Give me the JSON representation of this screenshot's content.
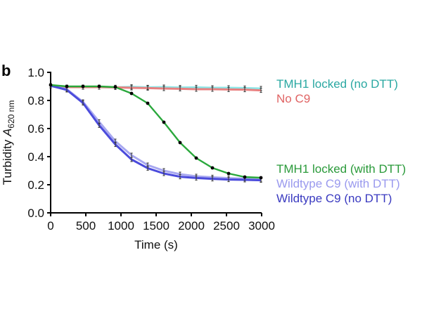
{
  "panel_label": "b",
  "chart_data": {
    "type": "line",
    "title": "",
    "xlabel": "Time (s)",
    "ylabel_main": "Turbidity ",
    "ylabel_symbol": "A",
    "ylabel_subscript": "620 nm",
    "xlim": [
      0,
      3000
    ],
    "ylim": [
      0.0,
      1.0
    ],
    "xticks": [
      0,
      500,
      1000,
      1500,
      2000,
      2500,
      3000
    ],
    "xtick_labels": [
      "0",
      "500",
      "1000",
      "1500",
      "2000",
      "2500",
      "3000"
    ],
    "yticks": [
      0.0,
      0.2,
      0.4,
      0.6,
      0.8,
      1.0
    ],
    "ytick_labels": [
      "0.0",
      "0.2",
      "0.4",
      "0.6",
      "0.8",
      "1.0"
    ],
    "grid": false,
    "legend_placement": "right",
    "x": [
      0,
      230,
      460,
      690,
      920,
      1150,
      1380,
      1610,
      1840,
      2070,
      2300,
      2530,
      2760,
      2990
    ],
    "series": [
      {
        "name": "TMH1 locked (no DTT)",
        "color": "#8ee6e6",
        "text_color": "#2aa8a2",
        "marker": "errorbar",
        "values": [
          0.905,
          0.895,
          0.895,
          0.895,
          0.893,
          0.897,
          0.893,
          0.895,
          0.892,
          0.893,
          0.89,
          0.89,
          0.888,
          0.885
        ]
      },
      {
        "name": "No C9",
        "color": "#e88080",
        "text_color": "#e06464",
        "marker": "errorbar",
        "values": [
          0.905,
          0.895,
          0.895,
          0.895,
          0.893,
          0.89,
          0.888,
          0.885,
          0.883,
          0.88,
          0.88,
          0.878,
          0.877,
          0.872
        ]
      },
      {
        "name": "TMH1 locked (with DTT)",
        "color": "#2aa83c",
        "text_color": "#2a9a3a",
        "marker": "dot",
        "values": [
          0.91,
          0.9,
          0.9,
          0.9,
          0.895,
          0.85,
          0.78,
          0.645,
          0.5,
          0.39,
          0.32,
          0.28,
          0.255,
          0.25
        ]
      },
      {
        "name": "Wildtype C9 (with DTT)",
        "color": "#a8a8f0",
        "text_color": "#9a9aee",
        "marker": "errorbar",
        "values": [
          0.905,
          0.88,
          0.79,
          0.648,
          0.51,
          0.41,
          0.34,
          0.3,
          0.275,
          0.26,
          0.253,
          0.247,
          0.243,
          0.24
        ]
      },
      {
        "name": "Wildtype C9 (no DTT)",
        "color": "#4b4bdc",
        "text_color": "#3a3ac0",
        "marker": "errorbar",
        "values": [
          0.905,
          0.875,
          0.782,
          0.623,
          0.487,
          0.38,
          0.318,
          0.28,
          0.257,
          0.248,
          0.242,
          0.237,
          0.235,
          0.232
        ]
      }
    ]
  }
}
